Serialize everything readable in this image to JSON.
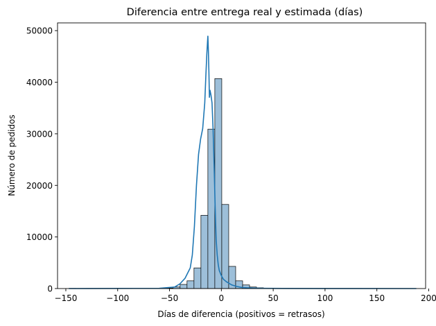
{
  "chart_data": {
    "type": "histogram",
    "title": "Diferencia entre entrega real y estimada (días)",
    "xlabel": "Días de diferencia (positivos = retrasos)",
    "ylabel": "Número de pedidos",
    "xlim": [
      -158,
      197
    ],
    "ylim": [
      0,
      51500
    ],
    "xticks": [
      -150,
      -100,
      -50,
      0,
      50,
      100,
      150,
      200
    ],
    "xtick_labels": [
      "−150",
      "−100",
      "−50",
      "0",
      "50",
      "100",
      "150",
      "200"
    ],
    "yticks": [
      0,
      10000,
      20000,
      30000,
      40000,
      50000
    ],
    "ytick_labels": [
      "0",
      "10000",
      "20000",
      "30000",
      "40000",
      "50000"
    ],
    "bin_start": -147,
    "bin_width": 6.7,
    "bin_counts": [
      30,
      0,
      0,
      0,
      0,
      0,
      0,
      0,
      0,
      0,
      0,
      0,
      20,
      40,
      100,
      300,
      800,
      1500,
      4000,
      14200,
      30900,
      40700,
      16300,
      4300,
      1500,
      700,
      300,
      150,
      80,
      40,
      20,
      10,
      10,
      5,
      5,
      0,
      0,
      0,
      0,
      0,
      0,
      0,
      0,
      0,
      0,
      0,
      0,
      0,
      0,
      5
    ],
    "kde": {
      "x": [
        -147,
        -60,
        -45,
        -40,
        -35,
        -30,
        -28,
        -26,
        -24,
        -22,
        -20,
        -18,
        -16,
        -15,
        -14,
        -13,
        -12.5,
        -12,
        -11.5,
        -11,
        -10,
        -9,
        -8,
        -7,
        -6,
        -5,
        -4,
        -3,
        -2,
        0,
        2,
        5,
        10,
        15,
        20,
        30,
        40,
        60,
        100,
        188
      ],
      "y": [
        0,
        50,
        300,
        900,
        2000,
        4000,
        6500,
        12000,
        20000,
        26000,
        29000,
        31000,
        36000,
        41000,
        45500,
        49000,
        46000,
        42000,
        37000,
        38500,
        37500,
        36000,
        31000,
        24000,
        16000,
        9500,
        6500,
        4600,
        3500,
        2500,
        1800,
        1300,
        700,
        400,
        200,
        100,
        50,
        20,
        5,
        0
      ]
    },
    "colors": {
      "bar_fill": "#9dbfd9",
      "bar_edge": "#000000",
      "kde_line": "#1f77b4"
    },
    "grid": false
  }
}
